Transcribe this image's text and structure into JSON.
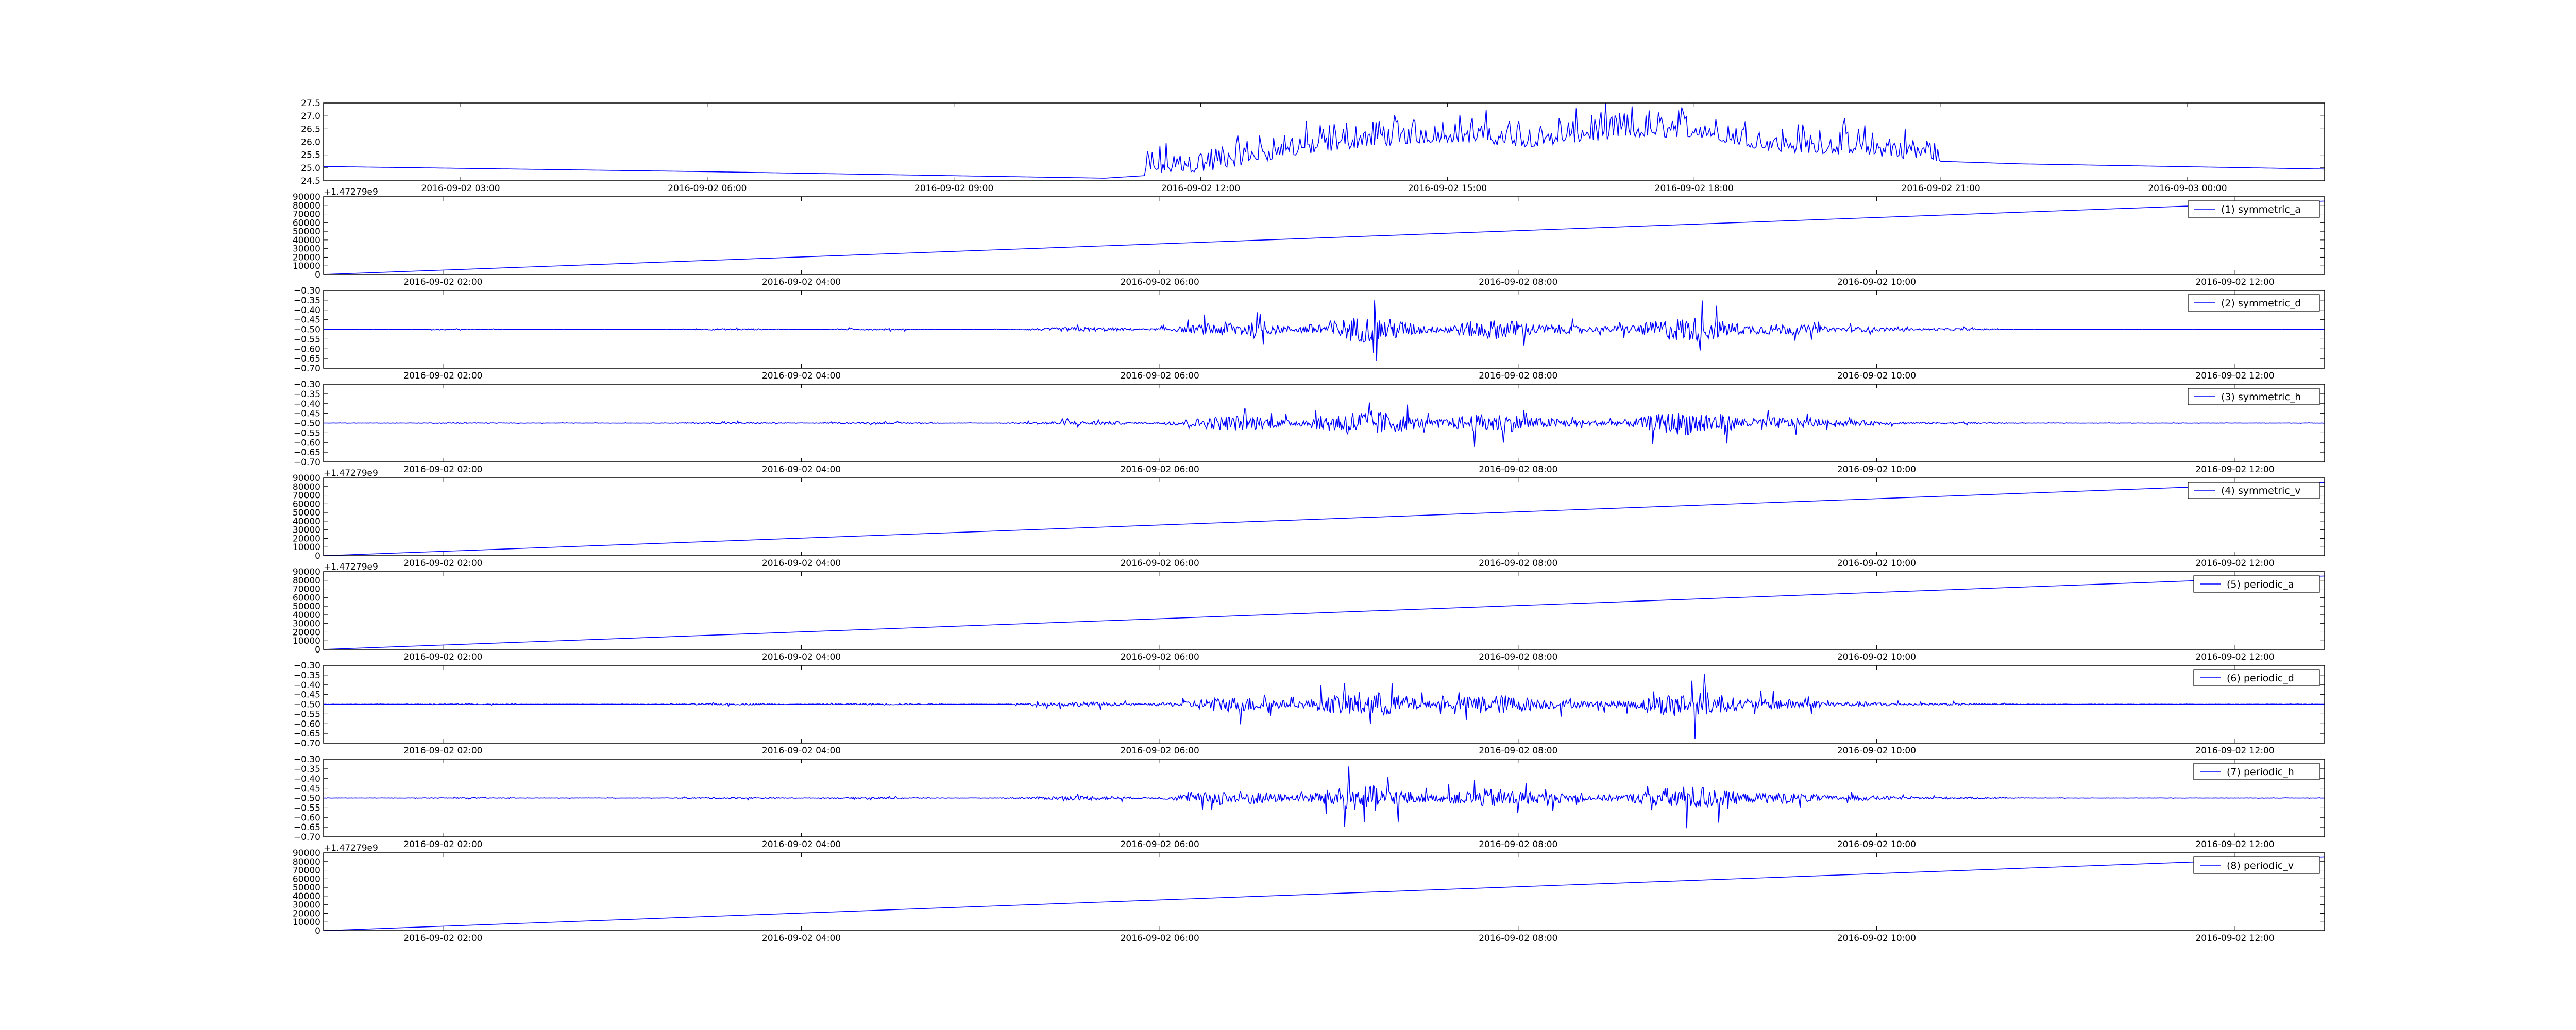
{
  "figure": {
    "background": "#ffffff",
    "line_color": "#0000ff",
    "frame_color": "#000000"
  },
  "chart_data": [
    {
      "id": "p0",
      "type": "line",
      "ylim": [
        24.5,
        27.5
      ],
      "yticks": [
        24.5,
        25.0,
        25.5,
        26.0,
        26.5,
        27.0,
        27.5
      ],
      "ytick_labels": [
        "24.5",
        "25.0",
        "25.5",
        "26.0",
        "26.5",
        "27.0",
        "27.5"
      ],
      "xlim": [
        "2016-09-02 01:20",
        "2016-09-03 01:40"
      ],
      "xticks": [
        "2016-09-02 03:00",
        "2016-09-02 06:00",
        "2016-09-02 09:00",
        "2016-09-02 12:00",
        "2016-09-02 15:00",
        "2016-09-02 18:00",
        "2016-09-02 21:00",
        "2016-09-03 00:00"
      ],
      "y_offset_text": "",
      "legend": "",
      "series": [
        {
          "x": [
            "2016-09-02 01:20",
            "2016-09-02 06:00",
            "2016-09-02 10:50",
            "2016-09-02 11:20",
            "2016-09-02 12:10",
            "2016-09-02 13:00",
            "2016-09-02 14:00",
            "2016-09-02 15:00",
            "2016-09-02 16:00",
            "2016-09-02 17:00",
            "2016-09-02 18:00",
            "2016-09-02 19:00",
            "2016-09-02 20:00",
            "2016-09-02 21:00",
            "2016-09-02 22:00",
            "2016-09-03 01:40"
          ],
          "y": [
            25.05,
            24.85,
            24.6,
            24.7,
            24.9,
            25.4,
            25.8,
            26.0,
            25.8,
            26.1,
            26.2,
            25.6,
            25.5,
            25.25,
            25.15,
            24.95
          ]
        }
      ]
    },
    {
      "id": "p1",
      "type": "line",
      "ylim": [
        0,
        90000
      ],
      "yticks": [
        0,
        10000,
        20000,
        30000,
        40000,
        50000,
        60000,
        70000,
        80000,
        90000
      ],
      "ytick_labels": [
        "0",
        "10000",
        "20000",
        "30000",
        "40000",
        "50000",
        "60000",
        "70000",
        "80000",
        "90000"
      ],
      "xlim": [
        "2016-09-02 01:20",
        "2016-09-02 12:30"
      ],
      "xticks": [
        "2016-09-02 02:00",
        "2016-09-02 04:00",
        "2016-09-02 06:00",
        "2016-09-02 08:00",
        "2016-09-02 10:00",
        "2016-09-02 12:00"
      ],
      "y_offset_text": "+1.47279e9",
      "legend": "(1) symmetric_a",
      "series": [
        {
          "x": [
            "2016-09-02 01:20",
            "2016-09-02 12:30"
          ],
          "y": [
            0,
            85000
          ]
        }
      ]
    },
    {
      "id": "p2",
      "type": "line",
      "ylim": [
        -0.7,
        -0.3
      ],
      "yticks": [
        -0.7,
        -0.65,
        -0.6,
        -0.55,
        -0.5,
        -0.45,
        -0.4,
        -0.35,
        -0.3
      ],
      "ytick_labels": [
        "−0.70",
        "−0.65",
        "−0.60",
        "−0.55",
        "−0.50",
        "−0.45",
        "−0.40",
        "−0.35",
        "−0.30"
      ],
      "xlim": [
        "2016-09-02 01:20",
        "2016-09-02 12:30"
      ],
      "xticks": [
        "2016-09-02 02:00",
        "2016-09-02 04:00",
        "2016-09-02 06:00",
        "2016-09-02 08:00",
        "2016-09-02 10:00",
        "2016-09-02 12:00"
      ],
      "y_offset_text": "",
      "legend": "(2) symmetric_d",
      "series": [
        {
          "x": [
            "2016-09-02 01:20",
            "2016-09-02 12:30"
          ],
          "y": [
            -0.5,
            -0.5
          ]
        }
      ]
    },
    {
      "id": "p3",
      "type": "line",
      "ylim": [
        -0.7,
        -0.3
      ],
      "yticks": [
        -0.7,
        -0.65,
        -0.6,
        -0.55,
        -0.5,
        -0.45,
        -0.4,
        -0.35,
        -0.3
      ],
      "ytick_labels": [
        "−0.70",
        "−0.65",
        "−0.60",
        "−0.55",
        "−0.50",
        "−0.45",
        "−0.40",
        "−0.35",
        "−0.30"
      ],
      "xlim": [
        "2016-09-02 01:20",
        "2016-09-02 12:30"
      ],
      "xticks": [
        "2016-09-02 02:00",
        "2016-09-02 04:00",
        "2016-09-02 06:00",
        "2016-09-02 08:00",
        "2016-09-02 10:00",
        "2016-09-02 12:00"
      ],
      "y_offset_text": "",
      "legend": "(3) symmetric_h",
      "series": [
        {
          "x": [
            "2016-09-02 01:20",
            "2016-09-02 12:30"
          ],
          "y": [
            -0.5,
            -0.5
          ]
        }
      ]
    },
    {
      "id": "p4",
      "type": "line",
      "ylim": [
        0,
        90000
      ],
      "yticks": [
        0,
        10000,
        20000,
        30000,
        40000,
        50000,
        60000,
        70000,
        80000,
        90000
      ],
      "ytick_labels": [
        "0",
        "10000",
        "20000",
        "30000",
        "40000",
        "50000",
        "60000",
        "70000",
        "80000",
        "90000"
      ],
      "xlim": [
        "2016-09-02 01:20",
        "2016-09-02 12:30"
      ],
      "xticks": [
        "2016-09-02 02:00",
        "2016-09-02 04:00",
        "2016-09-02 06:00",
        "2016-09-02 08:00",
        "2016-09-02 10:00",
        "2016-09-02 12:00"
      ],
      "y_offset_text": "+1.47279e9",
      "legend": "(4) symmetric_v",
      "series": [
        {
          "x": [
            "2016-09-02 01:20",
            "2016-09-02 12:30"
          ],
          "y": [
            0,
            85000
          ]
        }
      ]
    },
    {
      "id": "p5",
      "type": "line",
      "ylim": [
        0,
        90000
      ],
      "yticks": [
        0,
        10000,
        20000,
        30000,
        40000,
        50000,
        60000,
        70000,
        80000,
        90000
      ],
      "ytick_labels": [
        "0",
        "10000",
        "20000",
        "30000",
        "40000",
        "50000",
        "60000",
        "70000",
        "80000",
        "90000"
      ],
      "xlim": [
        "2016-09-02 01:20",
        "2016-09-02 12:30"
      ],
      "xticks": [
        "2016-09-02 02:00",
        "2016-09-02 04:00",
        "2016-09-02 06:00",
        "2016-09-02 08:00",
        "2016-09-02 10:00",
        "2016-09-02 12:00"
      ],
      "y_offset_text": "+1.47279e9",
      "legend": "(5) periodic_a",
      "series": [
        {
          "x": [
            "2016-09-02 01:20",
            "2016-09-02 12:30"
          ],
          "y": [
            0,
            85000
          ]
        }
      ]
    },
    {
      "id": "p6",
      "type": "line",
      "ylim": [
        -0.7,
        -0.3
      ],
      "yticks": [
        -0.7,
        -0.65,
        -0.6,
        -0.55,
        -0.5,
        -0.45,
        -0.4,
        -0.35,
        -0.3
      ],
      "ytick_labels": [
        "−0.70",
        "−0.65",
        "−0.60",
        "−0.55",
        "−0.50",
        "−0.45",
        "−0.40",
        "−0.35",
        "−0.30"
      ],
      "xlim": [
        "2016-09-02 01:20",
        "2016-09-02 12:30"
      ],
      "xticks": [
        "2016-09-02 02:00",
        "2016-09-02 04:00",
        "2016-09-02 06:00",
        "2016-09-02 08:00",
        "2016-09-02 10:00",
        "2016-09-02 12:00"
      ],
      "y_offset_text": "",
      "legend": "(6) periodic_d",
      "series": [
        {
          "x": [
            "2016-09-02 01:20",
            "2016-09-02 12:30"
          ],
          "y": [
            -0.5,
            -0.5
          ]
        }
      ]
    },
    {
      "id": "p7",
      "type": "line",
      "ylim": [
        -0.7,
        -0.3
      ],
      "yticks": [
        -0.7,
        -0.65,
        -0.6,
        -0.55,
        -0.5,
        -0.45,
        -0.4,
        -0.35,
        -0.3
      ],
      "ytick_labels": [
        "−0.70",
        "−0.65",
        "−0.60",
        "−0.55",
        "−0.50",
        "−0.45",
        "−0.40",
        "−0.35",
        "−0.30"
      ],
      "xlim": [
        "2016-09-02 01:20",
        "2016-09-02 12:30"
      ],
      "xticks": [
        "2016-09-02 02:00",
        "2016-09-02 04:00",
        "2016-09-02 06:00",
        "2016-09-02 08:00",
        "2016-09-02 10:00",
        "2016-09-02 12:00"
      ],
      "y_offset_text": "",
      "legend": "(7) periodic_h",
      "series": [
        {
          "x": [
            "2016-09-02 01:20",
            "2016-09-02 12:30"
          ],
          "y": [
            -0.5,
            -0.5
          ]
        }
      ]
    },
    {
      "id": "p8",
      "type": "line",
      "ylim": [
        0,
        90000
      ],
      "yticks": [
        0,
        10000,
        20000,
        30000,
        40000,
        50000,
        60000,
        70000,
        80000,
        90000
      ],
      "ytick_labels": [
        "0",
        "10000",
        "20000",
        "30000",
        "40000",
        "50000",
        "60000",
        "70000",
        "80000",
        "90000"
      ],
      "xlim": [
        "2016-09-02 01:20",
        "2016-09-02 12:30"
      ],
      "xticks": [
        "2016-09-02 02:00",
        "2016-09-02 04:00",
        "2016-09-02 06:00",
        "2016-09-02 08:00",
        "2016-09-02 10:00",
        "2016-09-02 12:00"
      ],
      "y_offset_text": "+1.47279e9",
      "legend": "(8) periodic_v",
      "series": [
        {
          "x": [
            "2016-09-02 01:20",
            "2016-09-02 12:30"
          ],
          "y": [
            0,
            85000
          ]
        }
      ]
    }
  ]
}
